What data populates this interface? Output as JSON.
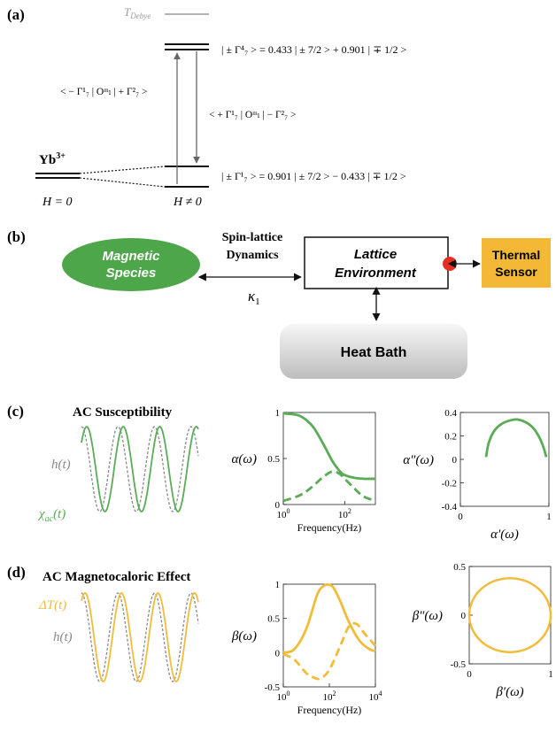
{
  "panel_labels": {
    "a": "(a)",
    "b": "(b)",
    "c": "(c)",
    "d": "(d)"
  },
  "panel_a": {
    "t_debye": "T",
    "t_debye_sub": "Debye",
    "ion": "Yb",
    "ion_charge": "3+",
    "h_zero": "H = 0",
    "h_nonzero": "H ≠ 0",
    "upper_state": "| ± Γ⁴₇ > = 0.433 | ± 7/2 > + 0.901 | ∓ 1/2 >",
    "lower_state": "| ± Γ¹₇ > = 0.901 | ± 7/2 > − 0.433 | ∓ 1/2 >",
    "matrix_left": "< − Γ¹₇ | Oᵐₗ | + Γ²₇ >",
    "matrix_right": "< + Γ¹₇ | Oᵐₗ | − Γ²₇ >",
    "colors": {
      "lines": "#222222",
      "debye": "#9a9a9a"
    }
  },
  "panel_b": {
    "magnetic_species": [
      "Magnetic",
      "Species"
    ],
    "spin_lattice": [
      "Spin-lattice",
      "Dynamics"
    ],
    "kappa": "κ",
    "kappa_sub": "1",
    "lattice": [
      "Lattice",
      "Environment"
    ],
    "thermal_sensor": [
      "Thermal",
      "Sensor"
    ],
    "heat_bath": "Heat Bath",
    "colors": {
      "species": "#4ea64a",
      "sensor": "#f3b936",
      "dot": "#e53020",
      "bath_top": "#f4f4f4",
      "bath_bottom": "#bfbfbf"
    }
  },
  "panel_c": {
    "title": "AC Susceptibility",
    "h_label": "h(t)",
    "chi_label": "χ",
    "chi_sub": "ac",
    "chi_suffix": "(t)",
    "color": "#5aac57",
    "chart_data": [
      {
        "type": "line",
        "ylabel": "α(ω)",
        "xlabel": "Frequency(Hz)",
        "xscale": "log",
        "xlim": [
          1,
          1000
        ],
        "ylim": [
          0,
          1
        ],
        "yticks": [
          "0",
          "0.5",
          "1"
        ],
        "xticks": [
          {
            "label": "10",
            "exp": "0"
          },
          {
            "label": "10",
            "exp": "2"
          }
        ],
        "series": [
          {
            "style": "solid",
            "x": [
              1,
              3,
              6,
              10,
              20,
              40,
              70,
              100,
              200,
              400,
              1000
            ],
            "y": [
              0.99,
              0.97,
              0.91,
              0.83,
              0.66,
              0.47,
              0.36,
              0.32,
              0.29,
              0.28,
              0.28
            ]
          },
          {
            "style": "dashed",
            "x": [
              1,
              3,
              6,
              10,
              20,
              40,
              70,
              100,
              200,
              400,
              1000
            ],
            "y": [
              0.04,
              0.09,
              0.15,
              0.21,
              0.3,
              0.36,
              0.33,
              0.28,
              0.18,
              0.09,
              0.04
            ]
          }
        ]
      },
      {
        "type": "line",
        "ylabel": "α″(ω)",
        "xlabel": "α′(ω)",
        "xlim": [
          0,
          1
        ],
        "ylim": [
          -0.4,
          0.4
        ],
        "yticks": [
          "0.4",
          "0.2",
          "0",
          "-0.2",
          "-0.4"
        ],
        "xticks": [
          {
            "label": "0"
          },
          {
            "label": "1"
          }
        ],
        "series": [
          {
            "style": "solid",
            "x": [
              0.29,
              0.32,
              0.38,
              0.46,
              0.55,
              0.64,
              0.73,
              0.82,
              0.89,
              0.94,
              0.97
            ],
            "y": [
              0.02,
              0.14,
              0.24,
              0.3,
              0.33,
              0.34,
              0.32,
              0.27,
              0.19,
              0.1,
              0.02
            ]
          }
        ]
      }
    ]
  },
  "panel_d": {
    "title": "AC Magnetocaloric Effect",
    "dt_label": "ΔT(t)",
    "h_label": "h(t)",
    "color": "#f2bc3b",
    "chart_data": [
      {
        "type": "line",
        "ylabel": "β(ω)",
        "xlabel": "Frequency(Hz)",
        "xscale": "log",
        "xlim": [
          1,
          10000
        ],
        "ylim": [
          -0.5,
          1
        ],
        "yticks": [
          "1",
          "0.5",
          "0",
          "-0.5"
        ],
        "xticks": [
          {
            "label": "10",
            "exp": "0"
          },
          {
            "label": "10",
            "exp": "2"
          },
          {
            "label": "10",
            "exp": "4"
          }
        ],
        "series": [
          {
            "style": "solid",
            "x": [
              1,
              3,
              10,
              30,
              60,
              100,
              150,
              300,
              700,
              2000,
              5000,
              10000
            ],
            "y": [
              0.0,
              0.05,
              0.35,
              0.85,
              0.98,
              0.99,
              0.95,
              0.75,
              0.45,
              0.18,
              0.06,
              0.02
            ]
          },
          {
            "style": "dashed",
            "x": [
              1,
              3,
              10,
              20,
              40,
              100,
              300,
              700,
              1500,
              3000,
              10000
            ],
            "y": [
              -0.02,
              -0.1,
              -0.3,
              -0.36,
              -0.38,
              -0.25,
              0.1,
              0.38,
              0.42,
              0.3,
              0.1
            ]
          }
        ]
      },
      {
        "type": "line",
        "ylabel": "β″(ω)",
        "xlabel": "β′(ω)",
        "xlim": [
          0,
          1
        ],
        "ylim": [
          -0.5,
          0.5
        ],
        "yticks": [
          "0.5",
          "0",
          "-0.5"
        ],
        "xticks": [
          {
            "label": "0"
          },
          {
            "label": "1"
          }
        ],
        "series": [
          {
            "style": "solid",
            "shape": "full-circle",
            "center": [
              0.5,
              0
            ],
            "radius_x": 0.5,
            "radius_y": 0.38
          }
        ]
      }
    ]
  }
}
